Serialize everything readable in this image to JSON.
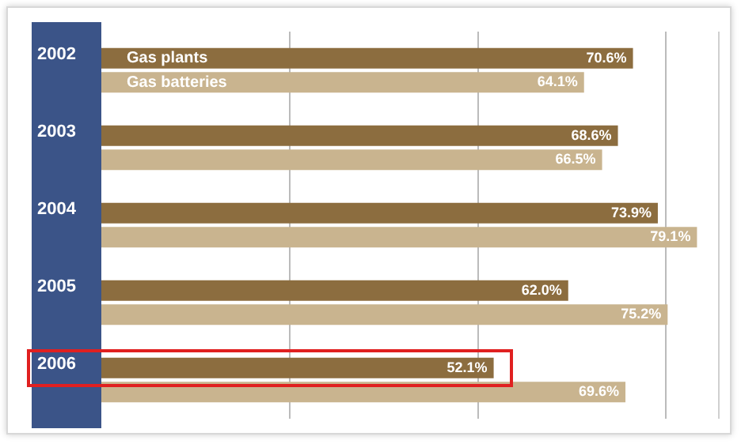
{
  "chart_data": {
    "type": "bar",
    "orientation": "horizontal",
    "categories": [
      "2002",
      "2003",
      "2004",
      "2005",
      "2006"
    ],
    "series": [
      {
        "name": "Gas plants",
        "color": "#8c6d3f",
        "values": [
          70.6,
          68.6,
          73.9,
          62.0,
          52.1
        ],
        "value_labels": [
          "70.6%",
          "68.6%",
          "73.9%",
          "62.0%",
          "52.1%"
        ]
      },
      {
        "name": "Gas batteries",
        "color": "#c9b48f",
        "values": [
          64.1,
          66.5,
          79.1,
          75.2,
          69.6
        ],
        "value_labels": [
          "64.1%",
          "66.5%",
          "79.1%",
          "75.2%",
          "69.6%"
        ]
      }
    ],
    "xlim": [
      0,
      82
    ],
    "xticks": [
      {
        "value": 25,
        "label": null
      },
      {
        "value": 50,
        "label": null
      },
      {
        "value": 75,
        "label": null
      }
    ],
    "grid": "x",
    "tick_labels": "y"
  }
}
